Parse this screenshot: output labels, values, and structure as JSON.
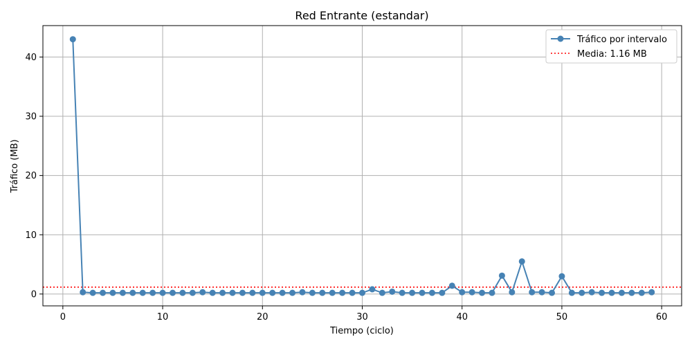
{
  "chart_data": {
    "type": "line",
    "title": "Red Entrante (estandar)",
    "xlabel": "Tiempo (ciclo)",
    "ylabel": "Tráfico (MB)",
    "xlim": [
      -2,
      62
    ],
    "ylim": [
      -2,
      45.3
    ],
    "xticks": [
      0,
      10,
      20,
      30,
      40,
      50,
      60
    ],
    "yticks": [
      0,
      10,
      20,
      30,
      40
    ],
    "grid": true,
    "legend_position": "top-right",
    "series": [
      {
        "name": "Tráfico por intervalo",
        "color": "#4682b4",
        "x": [
          1,
          2,
          3,
          4,
          5,
          6,
          7,
          8,
          9,
          10,
          11,
          12,
          13,
          14,
          15,
          16,
          17,
          18,
          19,
          20,
          21,
          22,
          23,
          24,
          25,
          26,
          27,
          28,
          29,
          30,
          31,
          32,
          33,
          34,
          35,
          36,
          37,
          38,
          39,
          40,
          41,
          42,
          43,
          44,
          45,
          46,
          47,
          48,
          49,
          50,
          51,
          52,
          53,
          54,
          55,
          56,
          57,
          58,
          59
        ],
        "values": [
          43,
          0.3,
          0.2,
          0.2,
          0.2,
          0.2,
          0.2,
          0.2,
          0.2,
          0.2,
          0.2,
          0.2,
          0.2,
          0.3,
          0.2,
          0.2,
          0.2,
          0.2,
          0.2,
          0.2,
          0.2,
          0.2,
          0.2,
          0.3,
          0.2,
          0.2,
          0.2,
          0.2,
          0.2,
          0.2,
          0.8,
          0.2,
          0.4,
          0.2,
          0.2,
          0.2,
          0.2,
          0.2,
          1.4,
          0.3,
          0.3,
          0.2,
          0.2,
          3.1,
          0.3,
          5.5,
          0.3,
          0.3,
          0.2,
          3.0,
          0.2,
          0.2,
          0.3,
          0.2,
          0.2,
          0.2,
          0.2,
          0.2,
          0.3
        ]
      }
    ],
    "reference_line": {
      "label": "Media: 1.16 MB",
      "value": 1.16,
      "color": "#ff0000"
    }
  }
}
